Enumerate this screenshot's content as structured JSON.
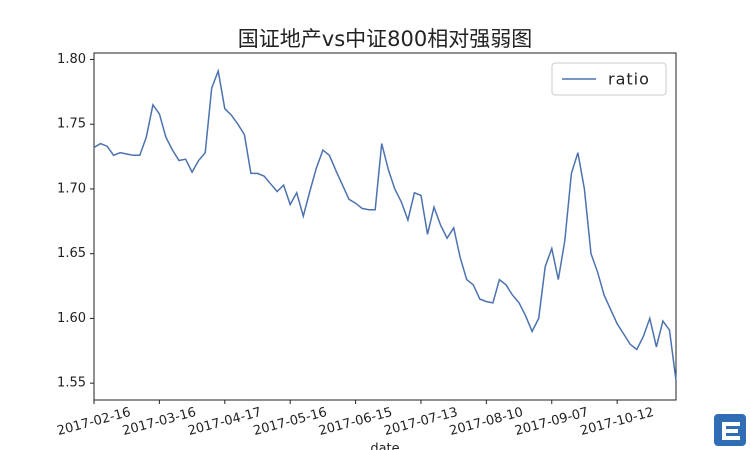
{
  "chart_data": {
    "type": "line",
    "title": "国证地产vs中证800相对强弱图",
    "x_label": "date",
    "categories": [
      "2017-02-16",
      null,
      null,
      null,
      null,
      null,
      null,
      null,
      null,
      null,
      "2017-03-16",
      null,
      null,
      null,
      null,
      null,
      null,
      null,
      null,
      null,
      "2017-04-17",
      null,
      null,
      null,
      null,
      null,
      null,
      null,
      null,
      null,
      "2017-05-16",
      null,
      null,
      null,
      null,
      null,
      null,
      null,
      null,
      null,
      "2017-06-15",
      null,
      null,
      null,
      null,
      null,
      null,
      null,
      null,
      null,
      "2017-07-13",
      null,
      null,
      null,
      null,
      null,
      null,
      null,
      null,
      null,
      "2017-08-10",
      null,
      null,
      null,
      null,
      null,
      null,
      null,
      null,
      null,
      "2017-09-07",
      null,
      null,
      null,
      null,
      null,
      null,
      null,
      null,
      null,
      "2017-10-12",
      null,
      null,
      null,
      null,
      null,
      null,
      null,
      null,
      null
    ],
    "series": [
      {
        "name": "ratio",
        "color": "#4c72b0",
        "values": [
          1.732,
          1.735,
          1.733,
          1.726,
          1.728,
          1.727,
          1.726,
          1.726,
          1.74,
          1.765,
          1.758,
          1.74,
          1.73,
          1.722,
          1.723,
          1.713,
          1.722,
          1.728,
          1.778,
          1.791,
          1.762,
          1.757,
          1.75,
          1.742,
          1.712,
          1.712,
          1.71,
          1.704,
          1.698,
          1.703,
          1.688,
          1.697,
          1.679,
          1.698,
          1.716,
          1.73,
          1.726,
          1.714,
          1.703,
          1.692,
          1.689,
          1.685,
          1.684,
          1.684,
          1.735,
          1.715,
          1.7,
          1.69,
          1.676,
          1.697,
          1.695,
          1.665,
          1.686,
          1.672,
          1.662,
          1.67,
          1.647,
          1.63,
          1.626,
          1.615,
          1.613,
          1.612,
          1.63,
          1.626,
          1.618,
          1.612,
          1.602,
          1.59,
          1.6,
          1.64,
          1.654,
          1.63,
          1.66,
          1.712,
          1.728,
          1.7,
          1.65,
          1.636,
          1.618,
          1.607,
          1.596,
          1.588,
          1.58,
          1.576,
          1.586,
          1.6,
          1.578,
          1.598,
          1.591,
          1.552
        ]
      }
    ],
    "ylim": [
      1.537,
      1.805
    ],
    "yticks": [
      1.55,
      {
        "value": 1.6,
        "label": "1.60"
      },
      1.65,
      {
        "value": 1.7,
        "label": "1.70"
      },
      1.75,
      {
        "value": 1.8,
        "label": "1.80"
      }
    ],
    "legend": "upper right"
  }
}
